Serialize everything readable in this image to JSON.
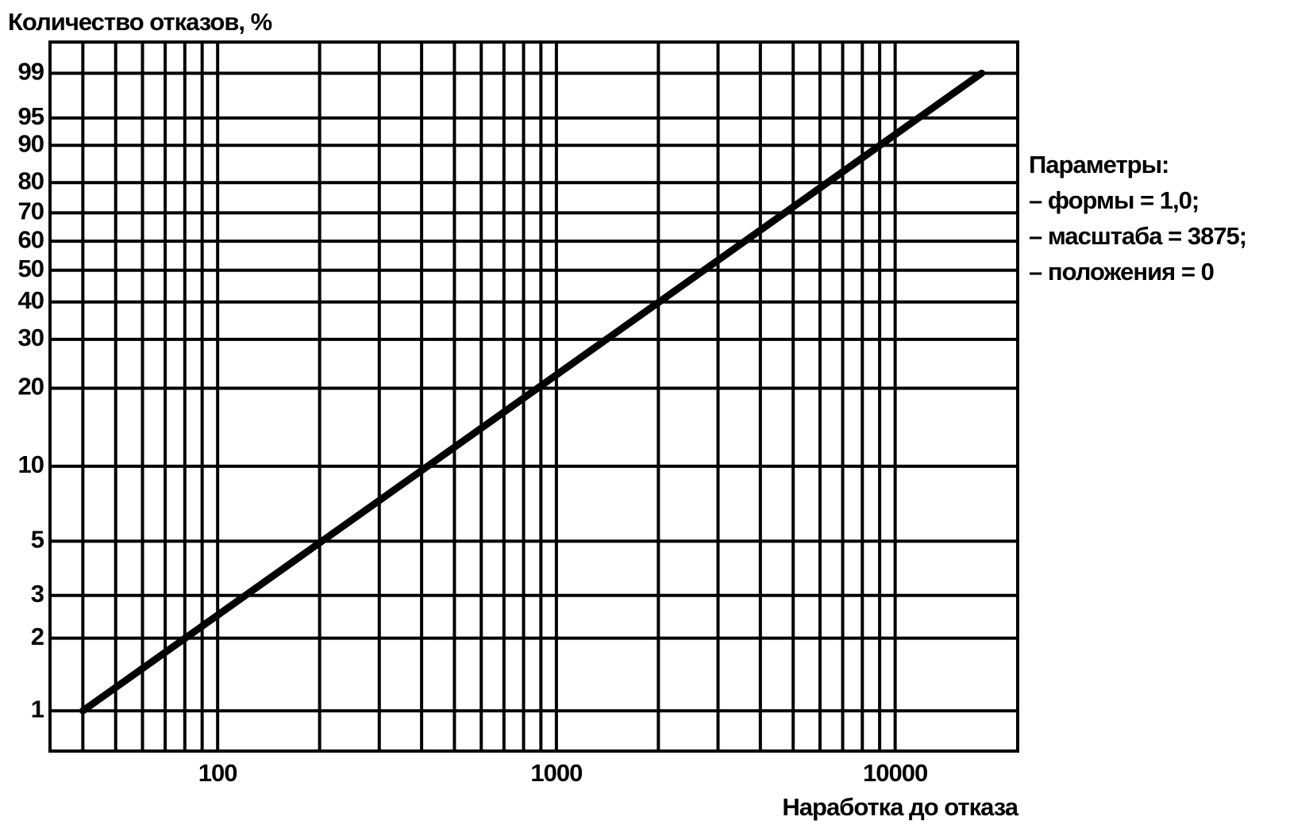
{
  "chart_data": {
    "type": "line",
    "title": "Количество отказов, %",
    "x_label": "Наработка до отказа",
    "annotations": [
      "Параметры:",
      "– формы = 1,0;",
      "– масштаба = 3875;",
      "– положения = 0"
    ],
    "x": [
      40,
      18000
    ],
    "series": [
      {
        "name": null,
        "color": "#000000",
        "values": [
          1.0,
          99.0
        ]
      }
    ],
    "xlim": [
      32,
      23000
    ],
    "xlog": true,
    "xticks": [
      100,
      1000,
      10000
    ],
    "x_minor_ticks": [
      40,
      50,
      60,
      70,
      80,
      90,
      200,
      300,
      400,
      500,
      600,
      700,
      800,
      900,
      2000,
      3000,
      4000,
      5000,
      6000,
      7000,
      8000,
      9000
    ],
    "ylim": [
      0.68,
      99.8
    ],
    "yscale": "weibull",
    "yticks": [
      1,
      2,
      3,
      5,
      10,
      20,
      30,
      40,
      50,
      60,
      70,
      80,
      90,
      95,
      99
    ],
    "grid": true
  }
}
